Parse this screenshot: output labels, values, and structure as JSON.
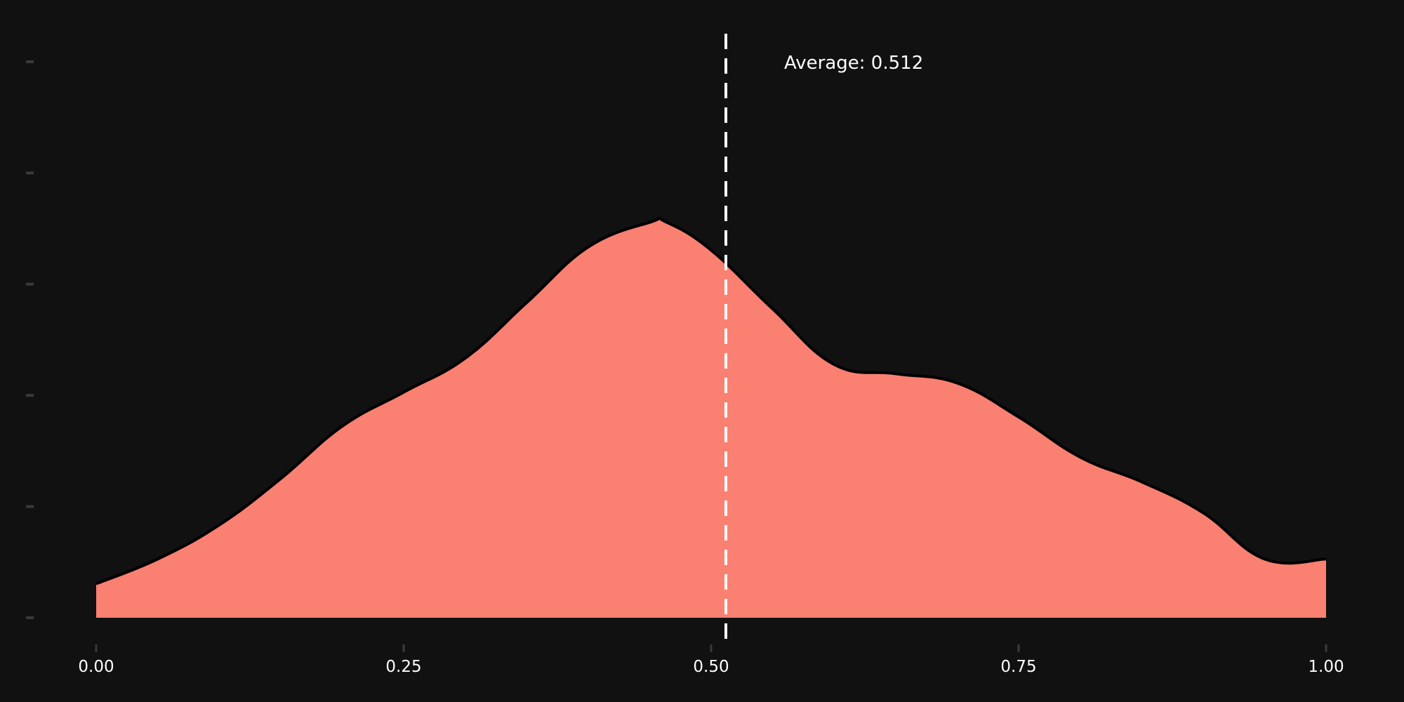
{
  "chart_data": {
    "type": "area",
    "title": "",
    "xlabel": "",
    "ylabel": "",
    "xlim": [
      0.0,
      1.0
    ],
    "ylim": [
      0.0,
      1.8
    ],
    "x_ticks": [
      {
        "value": 0.0,
        "label": "0.00"
      },
      {
        "value": 0.25,
        "label": "0.25"
      },
      {
        "value": 0.5,
        "label": "0.50"
      },
      {
        "value": 0.75,
        "label": "0.75"
      },
      {
        "value": 1.0,
        "label": "1.00"
      }
    ],
    "y_ticks": [
      0.0,
      0.36,
      0.72,
      1.08,
      1.44,
      1.8
    ],
    "y_tick_labels_shown": false,
    "grid": false,
    "series": [
      {
        "x": [
          0.0,
          0.05,
          0.1,
          0.15,
          0.2,
          0.25,
          0.3,
          0.35,
          0.4,
          0.45,
          0.464,
          0.5,
          0.55,
          0.6,
          0.65,
          0.7,
          0.75,
          0.8,
          0.85,
          0.9,
          0.95,
          1.0
        ],
        "y": [
          0.11,
          0.19,
          0.3,
          0.45,
          0.62,
          0.73,
          0.84,
          1.02,
          1.2,
          1.28,
          1.28,
          1.19,
          1.0,
          0.82,
          0.79,
          0.76,
          0.65,
          0.52,
          0.44,
          0.34,
          0.19,
          0.19
        ],
        "color": "#fa8072",
        "edge_color": "#000000"
      }
    ],
    "reference_line": {
      "x": 0.512,
      "style": "dashed",
      "color": "#ffffff"
    },
    "annotation": {
      "text": "Average: 0.512"
    }
  }
}
